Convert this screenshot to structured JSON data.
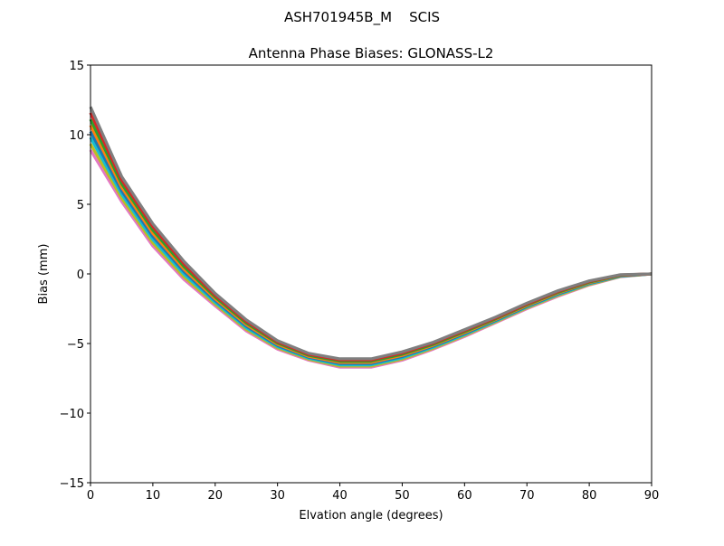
{
  "suptitle": "ASH701945B_M    SCIS",
  "chart_data": {
    "type": "line",
    "title": "Antenna Phase Biases: GLONASS-L2",
    "xlabel": "Elvation angle (degrees)",
    "ylabel": "Bias (mm)",
    "xlim": [
      0,
      90
    ],
    "ylim": [
      -15,
      15
    ],
    "xticks": [
      0,
      10,
      20,
      30,
      40,
      50,
      60,
      70,
      80,
      90
    ],
    "yticks": [
      -15,
      -10,
      -5,
      0,
      5,
      10,
      15
    ],
    "xtick_labels": [
      "0",
      "10",
      "20",
      "30",
      "40",
      "50",
      "60",
      "70",
      "80",
      "90"
    ],
    "ytick_labels": [
      "−15",
      "−10",
      "−5",
      "0",
      "5",
      "10",
      "15"
    ],
    "grid": false,
    "legend": "none",
    "x": [
      0,
      5,
      10,
      15,
      20,
      25,
      30,
      35,
      40,
      45,
      50,
      55,
      60,
      65,
      70,
      75,
      80,
      85,
      90
    ],
    "series": [
      {
        "color": "#e377c2",
        "values": [
          8.9,
          5.2,
          2.0,
          -0.4,
          -2.3,
          -4.1,
          -5.4,
          -6.2,
          -6.7,
          -6.7,
          -6.2,
          -5.4,
          -4.5,
          -3.5,
          -2.5,
          -1.6,
          -0.8,
          -0.2,
          0
        ]
      },
      {
        "color": "#bcbd22",
        "values": [
          9.34,
          5.45,
          2.22,
          -0.22,
          -2.17,
          -3.99,
          -5.32,
          -6.13,
          -6.62,
          -6.62,
          -6.12,
          -5.33,
          -4.43,
          -3.44,
          -2.44,
          -1.54,
          -0.76,
          -0.18,
          0
        ]
      },
      {
        "color": "#17becf",
        "values": [
          9.8,
          5.72,
          2.46,
          -0.02,
          -2.04,
          -3.87,
          -5.23,
          -6.06,
          -6.53,
          -6.53,
          -6.03,
          -5.26,
          -4.36,
          -3.38,
          -2.38,
          -1.48,
          -0.71,
          -0.16,
          0
        ]
      },
      {
        "color": "#1f77b4",
        "values": [
          10.23,
          5.97,
          2.69,
          0.16,
          -1.91,
          -3.76,
          -5.14,
          -5.99,
          -6.44,
          -6.44,
          -5.94,
          -5.19,
          -4.29,
          -3.33,
          -2.33,
          -1.43,
          -0.67,
          -0.14,
          0
        ]
      },
      {
        "color": "#ff7f0e",
        "values": [
          10.67,
          6.23,
          2.91,
          0.34,
          -1.79,
          -3.64,
          -5.06,
          -5.92,
          -6.36,
          -6.36,
          -5.86,
          -5.12,
          -4.22,
          -3.27,
          -2.27,
          -1.37,
          -0.63,
          -0.11,
          0
        ]
      },
      {
        "color": "#2ca02c",
        "values": [
          11.1,
          6.48,
          3.14,
          0.52,
          -1.66,
          -3.53,
          -4.97,
          -5.85,
          -6.27,
          -6.27,
          -5.77,
          -5.05,
          -4.15,
          -3.22,
          -2.22,
          -1.32,
          -0.59,
          -0.09,
          0
        ]
      },
      {
        "color": "#d62728",
        "values": [
          11.57,
          6.75,
          3.38,
          0.72,
          -1.53,
          -3.41,
          -4.88,
          -5.77,
          -6.18,
          -6.18,
          -5.68,
          -4.97,
          -4.07,
          -3.16,
          -2.16,
          -1.26,
          -0.54,
          -0.07,
          0
        ]
      },
      {
        "color": "#7f7f7f",
        "values": [
          12.0,
          7.0,
          3.6,
          0.9,
          -1.4,
          -3.3,
          -4.8,
          -5.7,
          -6.1,
          -6.1,
          -5.6,
          -4.9,
          -4.0,
          -3.1,
          -2.1,
          -1.2,
          -0.5,
          -0.05,
          0
        ]
      }
    ]
  }
}
